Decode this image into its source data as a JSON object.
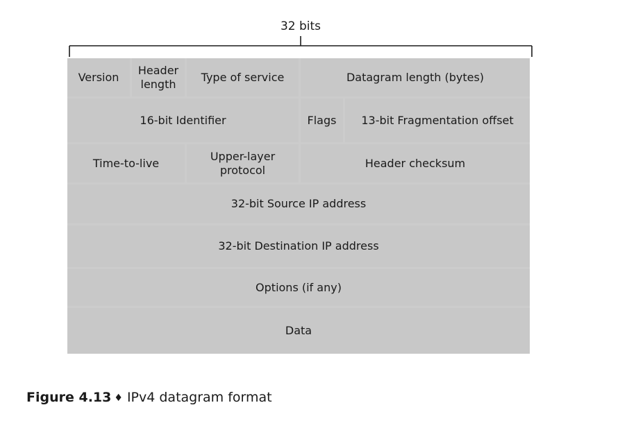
{
  "header": {
    "bits_label": "32 bits"
  },
  "fields": {
    "version": "Version",
    "header_length_1": "Header",
    "header_length_2": "length",
    "type_of_service": "Type of service",
    "datagram_length": "Datagram length (bytes)",
    "identifier": "16-bit Identifier",
    "flags": "Flags",
    "fragmentation_offset": "13-bit Fragmentation offset",
    "time_to_live": "Time-to-live",
    "upper_layer_1": "Upper-layer",
    "upper_layer_2": "protocol",
    "header_checksum": "Header checksum",
    "source_ip": "32-bit Source IP address",
    "destination_ip": "32-bit Destination IP address",
    "options": "Options (if any)",
    "data": "Data"
  },
  "caption": {
    "figure_number": "Figure 4.13",
    "separator_icon": "diamond-icon",
    "title": "IPv4 datagram format"
  },
  "colors": {
    "field_fill": "#c8c8c8",
    "divider": "#ffffff",
    "text": "#1a1a1a"
  }
}
